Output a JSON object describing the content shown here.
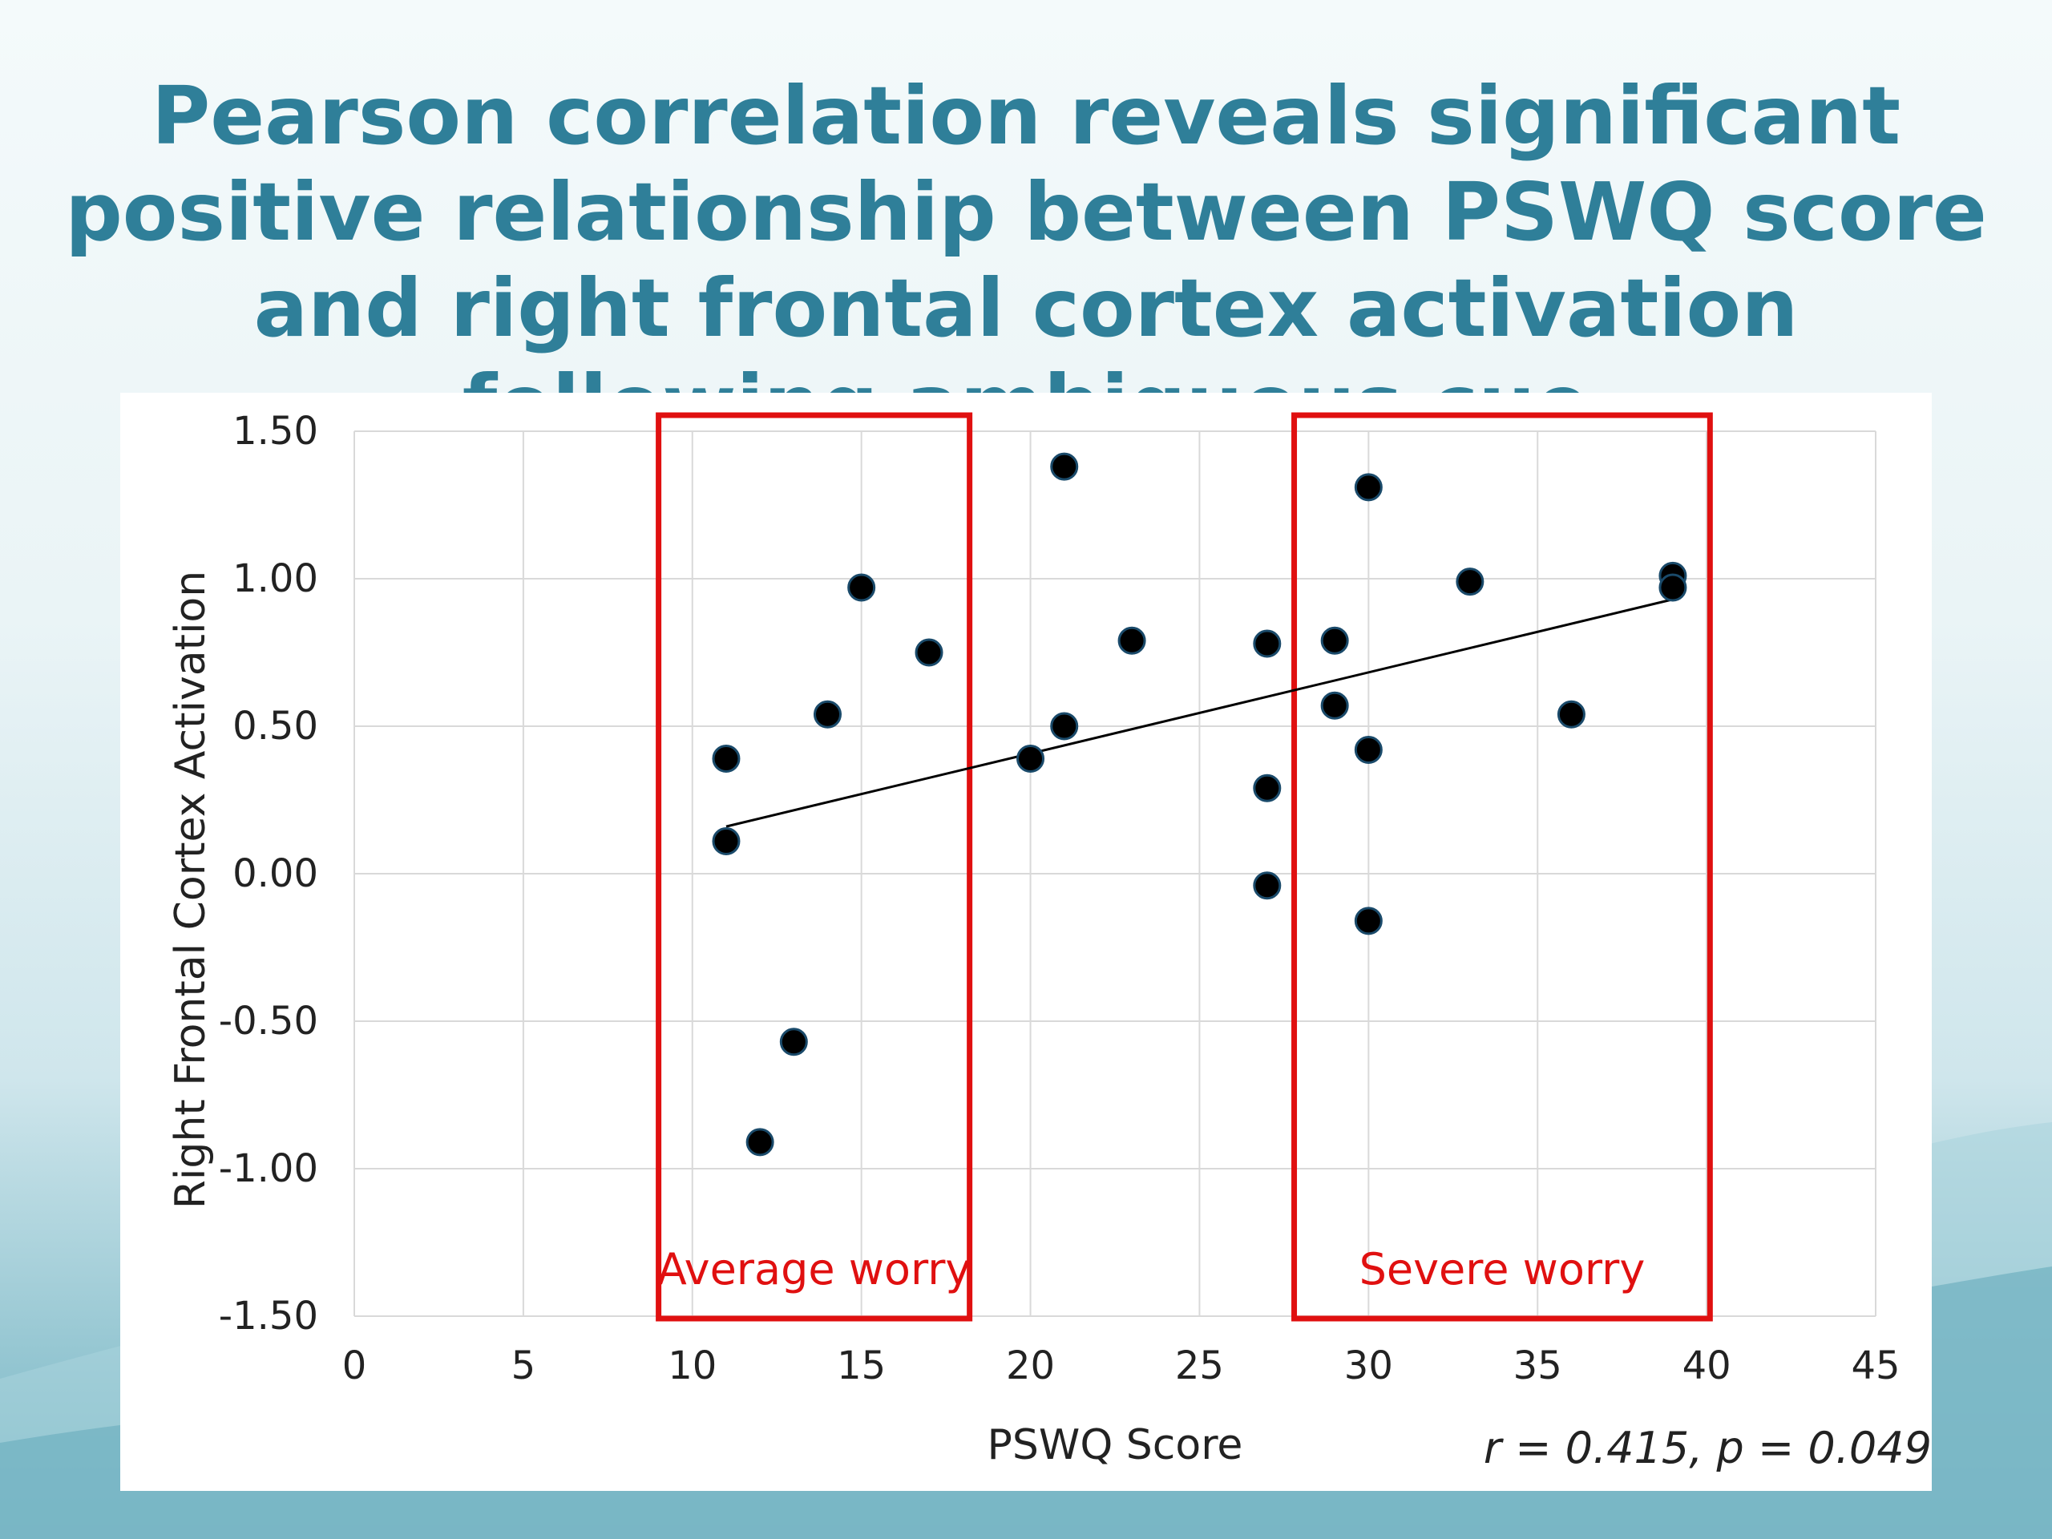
{
  "slide": {
    "title": "Pearson correlation reveals significant positive relationship between PSWQ score and right frontal cortex activation following ambiguous cue",
    "stats_text": "r = 0.415, p = 0.049"
  },
  "chart_data": {
    "type": "scatter",
    "title": "",
    "xlabel": "PSWQ Score",
    "ylabel": "Right Frontal Cortex Activation",
    "xlim": [
      0,
      45
    ],
    "ylim": [
      -1.5,
      1.5
    ],
    "xticks": [
      "0",
      "5",
      "10",
      "15",
      "20",
      "25",
      "30",
      "35",
      "40",
      "45"
    ],
    "yticks": [
      "1.50",
      "1.00",
      "0.50",
      "0.00",
      "-0.50",
      "-1.00",
      "-1.50"
    ],
    "grid": true,
    "series": [
      {
        "points": [
          [
            11,
            0.39
          ],
          [
            11,
            0.11
          ],
          [
            12,
            -0.91
          ],
          [
            13,
            -0.57
          ],
          [
            14,
            0.54
          ],
          [
            15,
            0.97
          ],
          [
            17,
            0.75
          ],
          [
            20,
            0.39
          ],
          [
            21,
            1.38
          ],
          [
            21,
            0.5
          ],
          [
            23,
            0.79
          ],
          [
            27,
            0.78
          ],
          [
            27,
            0.29
          ],
          [
            27,
            -0.04
          ],
          [
            29,
            0.79
          ],
          [
            29,
            0.57
          ],
          [
            30,
            1.31
          ],
          [
            30,
            0.42
          ],
          [
            30,
            -0.16
          ],
          [
            33,
            0.99
          ],
          [
            36,
            0.54
          ],
          [
            39,
            1.01
          ],
          [
            39,
            0.97
          ]
        ]
      }
    ],
    "trendline": {
      "x": [
        11,
        39
      ],
      "y": [
        0.16,
        0.93
      ]
    },
    "regions": [
      {
        "label": "Average worry",
        "x_range": [
          9,
          18.2
        ],
        "color": "#e01010"
      },
      {
        "label": "Severe worry",
        "x_range": [
          27.8,
          40.1
        ],
        "color": "#e01010"
      }
    ],
    "colors": {
      "point": "#000000",
      "point_edge": "#1a4a6a",
      "grid": "#d9d9d9",
      "title": "#2f7f99"
    }
  }
}
